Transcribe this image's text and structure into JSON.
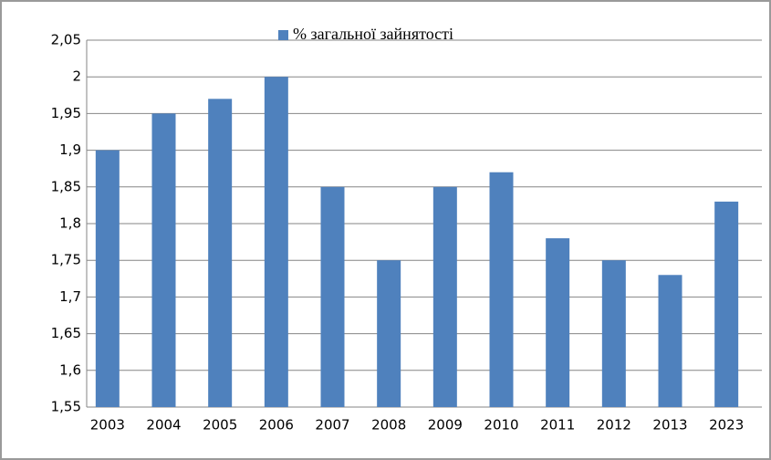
{
  "chart_data": {
    "type": "bar",
    "categories": [
      "2003",
      "2004",
      "2005",
      "2006",
      "2007",
      "2008",
      "2009",
      "2010",
      "2011",
      "2012",
      "2013",
      "2023"
    ],
    "series": [
      {
        "name": "% загальної зайнятості",
        "color": "#4f81bd",
        "values": [
          1.9,
          1.95,
          1.97,
          2.0,
          1.85,
          1.75,
          1.85,
          1.87,
          1.78,
          1.75,
          1.73,
          1.83
        ]
      }
    ],
    "ylim": [
      1.55,
      2.05
    ],
    "yticks": [
      {
        "value": 1.55,
        "label": "1,55"
      },
      {
        "value": 1.6,
        "label": "1,6"
      },
      {
        "value": 1.65,
        "label": "1,65"
      },
      {
        "value": 1.7,
        "label": "1,7"
      },
      {
        "value": 1.75,
        "label": "1,75"
      },
      {
        "value": 1.8,
        "label": "1,8"
      },
      {
        "value": 1.85,
        "label": "1,85"
      },
      {
        "value": 1.9,
        "label": "1,9"
      },
      {
        "value": 1.95,
        "label": "1,95"
      },
      2,
      {
        "value": 2.05,
        "label": "2,05"
      }
    ],
    "grid": true,
    "legend": "top"
  }
}
